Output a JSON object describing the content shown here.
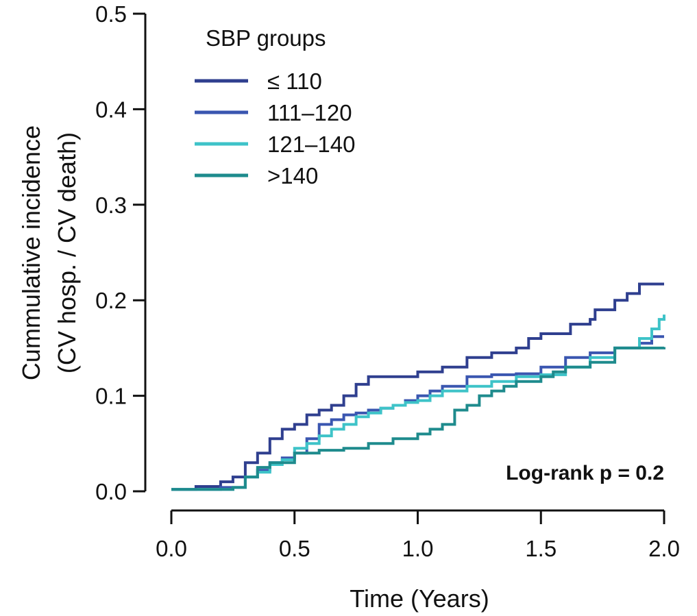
{
  "chart_data": {
    "type": "line",
    "step": true,
    "xlabel": "Time (Years)",
    "ylabel": [
      "Cummulative incidence",
      "(CV hosp. / CV death)"
    ],
    "xlim": [
      0,
      2
    ],
    "ylim": [
      0,
      0.5
    ],
    "xticks": [
      0,
      0.5,
      1,
      1.5,
      2
    ],
    "xtick_labels": [
      "0.0",
      "0.5",
      "1.0",
      "1.5",
      "2.0"
    ],
    "yticks": [
      0,
      0.1,
      0.2,
      0.3,
      0.4,
      0.5
    ],
    "ytick_labels": [
      "0.0",
      "0.1",
      "0.2",
      "0.3",
      "0.4",
      "0.5"
    ],
    "grid": false,
    "legend": {
      "title": "SBP groups",
      "position": "top-left"
    },
    "annotation": "Log-rank p = 0.2",
    "series": [
      {
        "name": "≤ 110",
        "color": "#2f3f8f",
        "points": [
          [
            0,
            0.002
          ],
          [
            0.1,
            0.005
          ],
          [
            0.2,
            0.01
          ],
          [
            0.25,
            0.015
          ],
          [
            0.3,
            0.03
          ],
          [
            0.35,
            0.04
          ],
          [
            0.4,
            0.055
          ],
          [
            0.45,
            0.065
          ],
          [
            0.5,
            0.07
          ],
          [
            0.55,
            0.08
          ],
          [
            0.6,
            0.085
          ],
          [
            0.65,
            0.09
          ],
          [
            0.7,
            0.1
          ],
          [
            0.75,
            0.112
          ],
          [
            0.8,
            0.12
          ],
          [
            0.9,
            0.12
          ],
          [
            1.0,
            0.125
          ],
          [
            1.1,
            0.13
          ],
          [
            1.2,
            0.14
          ],
          [
            1.3,
            0.145
          ],
          [
            1.4,
            0.15
          ],
          [
            1.45,
            0.16
          ],
          [
            1.5,
            0.165
          ],
          [
            1.6,
            0.165
          ],
          [
            1.62,
            0.175
          ],
          [
            1.7,
            0.18
          ],
          [
            1.72,
            0.19
          ],
          [
            1.8,
            0.2
          ],
          [
            1.85,
            0.207
          ],
          [
            1.9,
            0.217
          ],
          [
            2.0,
            0.217
          ]
        ]
      },
      {
        "name": "111–120",
        "color": "#3a56b0",
        "points": [
          [
            0,
            0.002
          ],
          [
            0.2,
            0.004
          ],
          [
            0.3,
            0.015
          ],
          [
            0.35,
            0.022
          ],
          [
            0.4,
            0.03
          ],
          [
            0.45,
            0.035
          ],
          [
            0.5,
            0.04
          ],
          [
            0.55,
            0.055
          ],
          [
            0.6,
            0.07
          ],
          [
            0.65,
            0.075
          ],
          [
            0.7,
            0.08
          ],
          [
            0.75,
            0.082
          ],
          [
            0.8,
            0.085
          ],
          [
            0.85,
            0.087
          ],
          [
            0.9,
            0.09
          ],
          [
            0.95,
            0.095
          ],
          [
            1.0,
            0.1
          ],
          [
            1.05,
            0.105
          ],
          [
            1.1,
            0.11
          ],
          [
            1.2,
            0.12
          ],
          [
            1.3,
            0.122
          ],
          [
            1.4,
            0.123
          ],
          [
            1.5,
            0.13
          ],
          [
            1.6,
            0.14
          ],
          [
            1.7,
            0.145
          ],
          [
            1.8,
            0.15
          ],
          [
            1.9,
            0.155
          ],
          [
            1.95,
            0.162
          ],
          [
            2.0,
            0.162
          ]
        ]
      },
      {
        "name": "121–140",
        "color": "#3ec3c8",
        "points": [
          [
            0,
            0.002
          ],
          [
            0.25,
            0.004
          ],
          [
            0.3,
            0.015
          ],
          [
            0.35,
            0.02
          ],
          [
            0.4,
            0.028
          ],
          [
            0.45,
            0.033
          ],
          [
            0.5,
            0.045
          ],
          [
            0.55,
            0.05
          ],
          [
            0.6,
            0.058
          ],
          [
            0.65,
            0.065
          ],
          [
            0.7,
            0.07
          ],
          [
            0.75,
            0.078
          ],
          [
            0.8,
            0.082
          ],
          [
            0.85,
            0.087
          ],
          [
            0.9,
            0.09
          ],
          [
            0.95,
            0.093
          ],
          [
            1.0,
            0.095
          ],
          [
            1.05,
            0.1
          ],
          [
            1.1,
            0.105
          ],
          [
            1.2,
            0.11
          ],
          [
            1.3,
            0.115
          ],
          [
            1.4,
            0.12
          ],
          [
            1.5,
            0.122
          ],
          [
            1.6,
            0.13
          ],
          [
            1.7,
            0.14
          ],
          [
            1.8,
            0.15
          ],
          [
            1.9,
            0.16
          ],
          [
            1.95,
            0.17
          ],
          [
            1.98,
            0.18
          ],
          [
            2.0,
            0.185
          ]
        ]
      },
      {
        "name": ">140",
        "color": "#1e8b8d",
        "points": [
          [
            0,
            0.002
          ],
          [
            0.25,
            0.004
          ],
          [
            0.3,
            0.015
          ],
          [
            0.35,
            0.025
          ],
          [
            0.4,
            0.03
          ],
          [
            0.5,
            0.04
          ],
          [
            0.6,
            0.043
          ],
          [
            0.7,
            0.045
          ],
          [
            0.8,
            0.05
          ],
          [
            0.9,
            0.055
          ],
          [
            1.0,
            0.06
          ],
          [
            1.05,
            0.065
          ],
          [
            1.1,
            0.07
          ],
          [
            1.15,
            0.085
          ],
          [
            1.2,
            0.09
          ],
          [
            1.25,
            0.1
          ],
          [
            1.3,
            0.105
          ],
          [
            1.35,
            0.11
          ],
          [
            1.4,
            0.115
          ],
          [
            1.5,
            0.12
          ],
          [
            1.55,
            0.125
          ],
          [
            1.6,
            0.13
          ],
          [
            1.7,
            0.135
          ],
          [
            1.8,
            0.15
          ],
          [
            2.0,
            0.151
          ]
        ]
      }
    ]
  }
}
